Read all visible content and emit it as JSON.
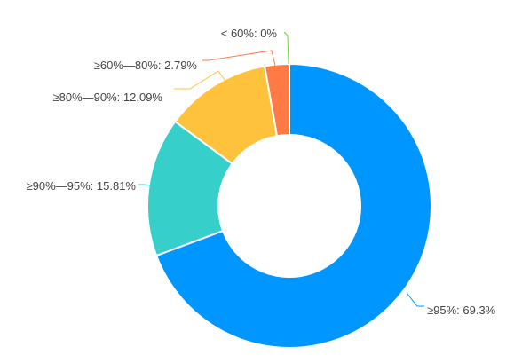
{
  "chart_data": {
    "type": "pie",
    "variant": "donut",
    "slices": [
      {
        "label": "≥95%",
        "value": 69.3,
        "display": "≥95%: 69.3%",
        "color": "#0096ff"
      },
      {
        "label": "≥90%—95%",
        "value": 15.81,
        "display": "≥90%—95%: 15.81%",
        "color": "#36cfc9"
      },
      {
        "label": "≥80%—90%",
        "value": 12.09,
        "display": "≥80%—90%: 12.09%",
        "color": "#ffc23d"
      },
      {
        "label": "≥60%—80%",
        "value": 2.79,
        "display": "≥60%—80%: 2.79%",
        "color": "#ff7a45"
      },
      {
        "label": "< 60%",
        "value": 0,
        "display": "< 60%: 0%",
        "color": "#73d13d"
      }
    ],
    "start_angle": "top",
    "direction": "clockwise",
    "labels": "outside with leader lines"
  }
}
